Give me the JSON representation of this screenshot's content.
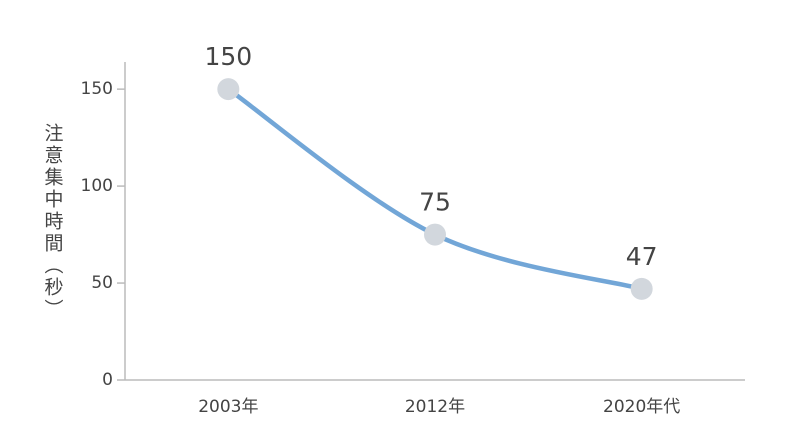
{
  "chart_data": {
    "type": "line",
    "y_label": "注意集中時間（秒）",
    "categories": [
      "2003年",
      "2012年",
      "2020年代"
    ],
    "values": [
      150,
      75,
      47
    ],
    "color": "#72a6d7",
    "marker_color": "#d2d7dd",
    "ylim": [
      0,
      164
    ],
    "yticks": [
      0,
      50,
      100,
      150
    ]
  }
}
